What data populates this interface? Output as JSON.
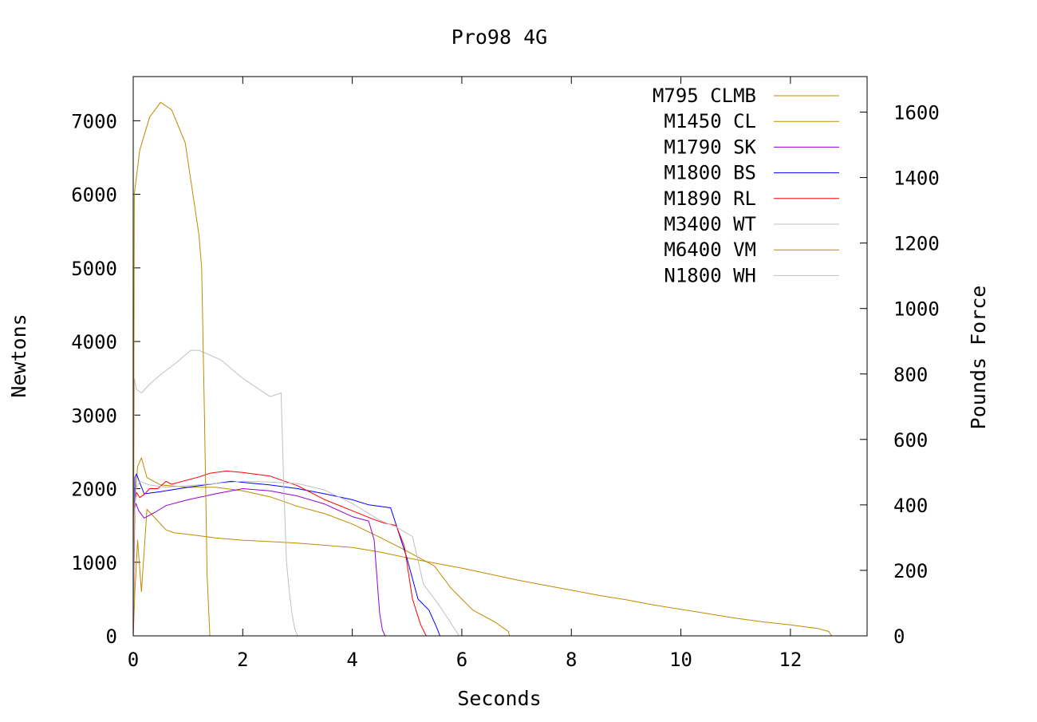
{
  "chart_data": {
    "type": "line",
    "title": "Pro98 4G",
    "xlabel": "Seconds",
    "ylabel": "Newtons",
    "y2label": "Pounds Force",
    "xlim": [
      0,
      13.4
    ],
    "ylim": [
      0,
      7600
    ],
    "y2lim": [
      0,
      1708.5
    ],
    "xticks": [
      "0",
      "2",
      "4",
      "6",
      "8",
      "10",
      "12"
    ],
    "yticks": [
      "0",
      "1000",
      "2000",
      "3000",
      "4000",
      "5000",
      "6000",
      "7000"
    ],
    "y2ticks": [
      "0",
      "200",
      "400",
      "600",
      "800",
      "1000",
      "1200",
      "1400",
      "1600"
    ],
    "grid": false,
    "legend_position": "top-right",
    "series": [
      {
        "name": "M795 CLMB",
        "color": "#c08a00",
        "x": [
          0,
          0.03,
          0.08,
          0.15,
          0.25,
          0.45,
          0.6,
          0.75,
          1,
          1.5,
          2,
          2.5,
          3,
          3.5,
          4,
          4.5,
          5,
          5.5,
          6,
          6.5,
          7,
          7.5,
          8,
          8.5,
          9,
          9.5,
          10,
          10.5,
          11,
          11.5,
          12,
          12.5,
          12.7,
          12.75
        ],
        "y": [
          0,
          600,
          1300,
          600,
          1720,
          1560,
          1440,
          1400,
          1380,
          1330,
          1300,
          1280,
          1260,
          1230,
          1200,
          1140,
          1060,
          990,
          920,
          840,
          760,
          690,
          620,
          550,
          490,
          420,
          360,
          300,
          240,
          190,
          150,
          100,
          60,
          0
        ]
      },
      {
        "name": "M1450 CL",
        "color": "#c08a00",
        "x": [
          0,
          0.02,
          0.08,
          0.15,
          0.25,
          0.5,
          1,
          1.5,
          2,
          2.5,
          3,
          3.5,
          4,
          4.5,
          5,
          5.5,
          5.8,
          6.2,
          6.6,
          6.85,
          6.87
        ],
        "y": [
          0,
          1750,
          2300,
          2420,
          2150,
          2050,
          2020,
          2020,
          1970,
          1890,
          1760,
          1660,
          1520,
          1340,
          1150,
          950,
          650,
          350,
          190,
          60,
          0
        ]
      },
      {
        "name": "M1790 SK",
        "color": "#9400d3",
        "x": [
          0,
          0.02,
          0.05,
          0.1,
          0.2,
          0.4,
          0.6,
          1,
          1.5,
          2,
          2.5,
          3,
          3.5,
          4,
          4.3,
          4.4,
          4.45,
          4.5,
          4.55,
          4.6
        ],
        "y": [
          0,
          1700,
          1800,
          1700,
          1600,
          1680,
          1770,
          1850,
          1930,
          2000,
          1970,
          1900,
          1790,
          1620,
          1560,
          1300,
          800,
          300,
          80,
          0
        ]
      },
      {
        "name": "M1800 BS",
        "color": "#0000ff",
        "x": [
          0,
          0.03,
          0.06,
          0.12,
          0.2,
          0.5,
          1,
          1.5,
          1.8,
          2.5,
          3,
          3.5,
          4,
          4.3,
          4.7,
          5,
          5.2,
          5.4,
          5.55,
          5.6
        ],
        "y": [
          0,
          2150,
          2200,
          2080,
          1930,
          1960,
          2020,
          2070,
          2100,
          2050,
          2000,
          1930,
          1850,
          1780,
          1740,
          1050,
          500,
          350,
          100,
          0
        ]
      },
      {
        "name": "M1890 RL",
        "color": "#ff0000",
        "x": [
          0,
          0.03,
          0.06,
          0.12,
          0.2,
          0.3,
          0.45,
          0.6,
          0.7,
          0.9,
          1,
          1.2,
          1.4,
          1.7,
          2,
          2.5,
          3,
          3.5,
          4,
          4.4,
          4.6,
          4.8,
          4.95,
          5.1,
          5.25,
          5.35
        ],
        "y": [
          0,
          1800,
          1950,
          1880,
          1920,
          2000,
          2000,
          2100,
          2060,
          2100,
          2120,
          2160,
          2210,
          2240,
          2220,
          2170,
          2040,
          1850,
          1700,
          1580,
          1530,
          1500,
          1220,
          500,
          150,
          0
        ]
      },
      {
        "name": "M3400 WT",
        "color": "#c0c0c0",
        "x": [
          0,
          0.02,
          0.06,
          0.15,
          0.3,
          0.5,
          0.8,
          1.05,
          1.2,
          1.6,
          2,
          2.5,
          2.7,
          2.75,
          2.8,
          2.85,
          2.9,
          2.95,
          3
        ],
        "y": [
          0,
          3500,
          3350,
          3300,
          3420,
          3550,
          3720,
          3880,
          3880,
          3750,
          3500,
          3250,
          3300,
          2000,
          1000,
          600,
          300,
          100,
          0
        ]
      },
      {
        "name": "M6400 VM",
        "color": "#c08a00",
        "x": [
          0,
          0.02,
          0.12,
          0.3,
          0.5,
          0.7,
          0.95,
          1.2,
          1.25,
          1.3,
          1.35,
          1.4
        ],
        "y": [
          0,
          6000,
          6600,
          7050,
          7250,
          7150,
          6700,
          5450,
          5000,
          3000,
          800,
          0
        ]
      },
      {
        "name": "N1800 WH",
        "color": "#c0c0c0",
        "x": [
          0,
          0.02,
          0.05,
          0.12,
          0.3,
          0.6,
          1,
          1.5,
          2,
          2.5,
          3,
          3.5,
          4,
          4.5,
          4.8,
          5.1,
          5.3,
          5.6,
          5.9,
          5.95
        ],
        "y": [
          0,
          1600,
          2000,
          2100,
          2050,
          2020,
          2040,
          2070,
          2100,
          2090,
          2070,
          1980,
          1800,
          1570,
          1480,
          1350,
          700,
          400,
          60,
          0
        ]
      }
    ]
  }
}
